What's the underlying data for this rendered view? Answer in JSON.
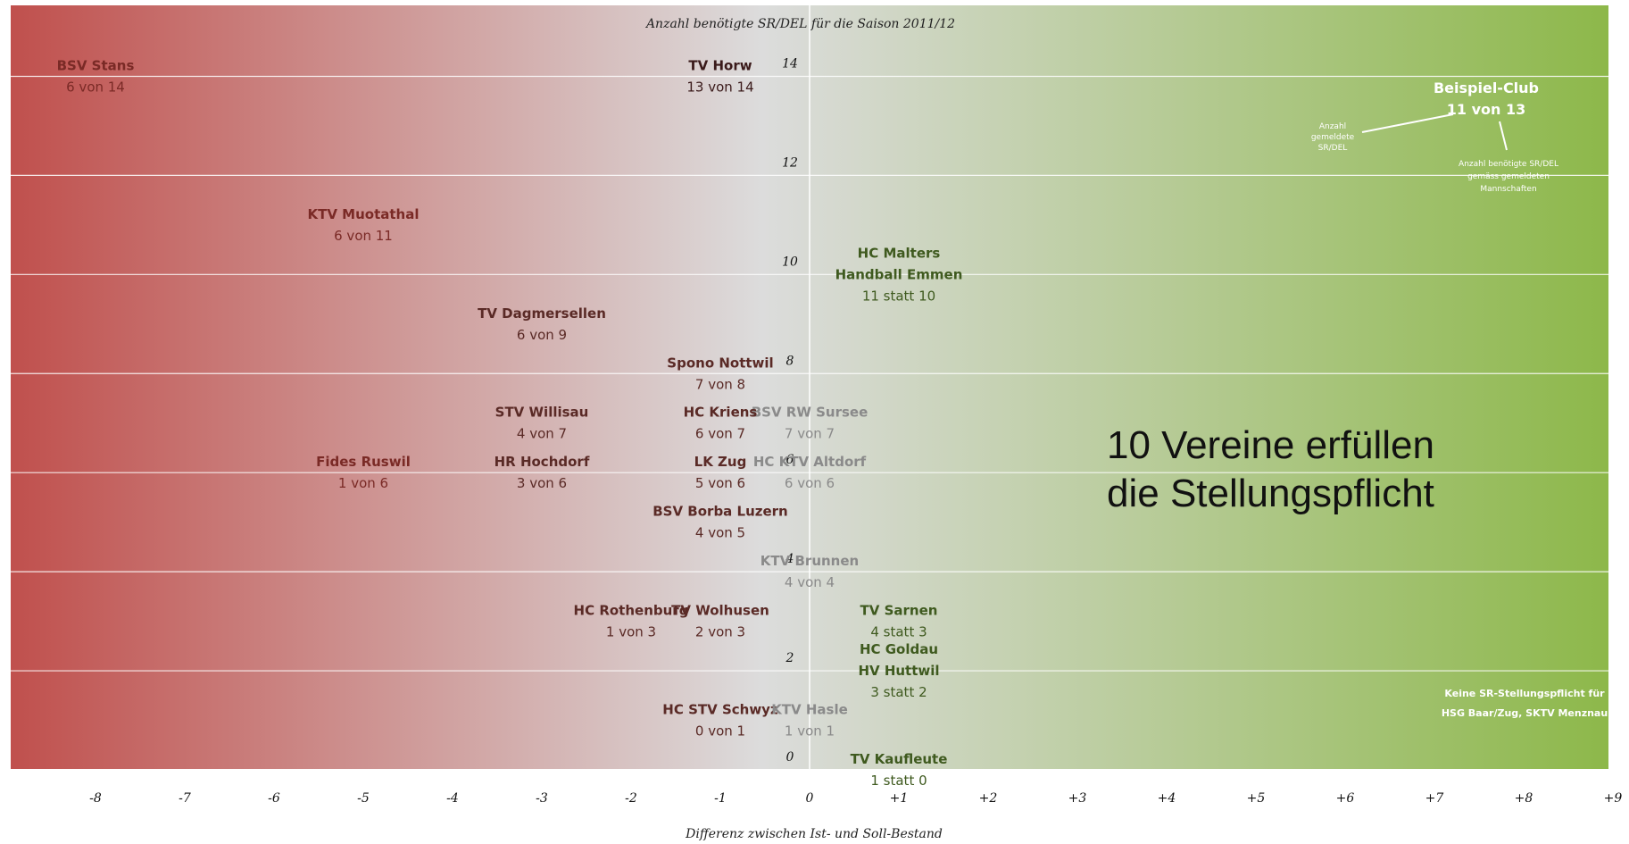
{
  "chart_data": {
    "type": "scatter",
    "title": "Anzahl benötigte SR/DEL für die Saison 2011/12",
    "xlabel": "Differenz zwischen Ist- und Soll-Bestand",
    "ylabel": "",
    "xlim": [
      -9,
      9
    ],
    "ylim": [
      0,
      15
    ],
    "x_ticks": [
      "-8",
      "-7",
      "-6",
      "-5",
      "-4",
      "-3",
      "-2",
      "-1",
      "0",
      "+1",
      "+2",
      "+3",
      "+4",
      "+5",
      "+6",
      "+7",
      "+8",
      "+9"
    ],
    "y_ticks": [
      "0",
      "2",
      "4",
      "6",
      "8",
      "10",
      "12",
      "14"
    ],
    "grid": "horizontal",
    "background": "gradient red to green",
    "colors": {
      "negative": "#c0504d",
      "neutral": "#dcdcdc",
      "positive": "#8db84a"
    },
    "points": [
      {
        "lines": [
          "BSV Stans",
          "6 von 14"
        ],
        "x": -8,
        "y": 14,
        "color": "#7a2a26"
      },
      {
        "lines": [
          "TV Horw",
          "13 von 14"
        ],
        "x": -1,
        "y": 14,
        "color": "#3a1a1a"
      },
      {
        "lines": [
          "KTV Muotathal",
          "6 von 11"
        ],
        "x": -5,
        "y": 11,
        "color": "#7a2a26"
      },
      {
        "lines": [
          "HC Malters",
          "Handball Emmen",
          "11 statt 10"
        ],
        "x": 1,
        "y": 10,
        "color": "#3f5a1f"
      },
      {
        "lines": [
          "TV Dagmersellen",
          "6 von 9"
        ],
        "x": -3,
        "y": 9,
        "color": "#5a2a26"
      },
      {
        "lines": [
          "Spono Nottwil",
          "7 von 8"
        ],
        "x": -1,
        "y": 8,
        "color": "#5a2a26"
      },
      {
        "lines": [
          "STV Willisau",
          "4 von 7"
        ],
        "x": -3,
        "y": 7,
        "color": "#5a2a26"
      },
      {
        "lines": [
          "BSV RW Sursee",
          "7 von 7"
        ],
        "x": 0,
        "y": 7,
        "color": "#8a8a8a"
      },
      {
        "lines": [
          "HC Kriens",
          "6 von 7"
        ],
        "x": -1,
        "y": 7,
        "color": "#5a2a26"
      },
      {
        "lines": [
          "HC KTV Altdorf",
          "6 von 6"
        ],
        "x": 0,
        "y": 6,
        "color": "#8a8a8a"
      },
      {
        "lines": [
          "Fides Ruswil",
          "1 von 6"
        ],
        "x": -5,
        "y": 6,
        "color": "#7a2a26"
      },
      {
        "lines": [
          "HR Hochdorf",
          "3 von 6"
        ],
        "x": -3,
        "y": 6,
        "color": "#5a2a26"
      },
      {
        "lines": [
          "LK Zug",
          "5 von 6"
        ],
        "x": -1,
        "y": 6,
        "color": "#5a2a26"
      },
      {
        "lines": [
          "BSV Borba Luzern",
          "4 von 5"
        ],
        "x": -1,
        "y": 5,
        "color": "#5a2a26"
      },
      {
        "lines": [
          "KTV Brunnen",
          "4 von 4"
        ],
        "x": 0,
        "y": 4,
        "color": "#8a8a8a"
      },
      {
        "lines": [
          "HC Rothenburg",
          "1 von 3"
        ],
        "x": -2,
        "y": 3,
        "color": "#5a2a26"
      },
      {
        "lines": [
          "TV Wolhusen",
          "2 von 3"
        ],
        "x": -1,
        "y": 3,
        "color": "#5a2a26"
      },
      {
        "lines": [
          "TV Sarnen",
          "4 statt 3"
        ],
        "x": 1,
        "y": 3,
        "color": "#3f5a1f"
      },
      {
        "lines": [
          "HC Goldau",
          "HV Huttwil",
          "3 statt 2"
        ],
        "x": 1,
        "y": 2,
        "color": "#3f5a1f"
      },
      {
        "lines": [
          "HC STV Schwyz",
          "0 von 1"
        ],
        "x": -1,
        "y": 1,
        "color": "#5a2a26"
      },
      {
        "lines": [
          "KTV Hasle",
          "1 von 1"
        ],
        "x": 0,
        "y": 1,
        "color": "#8a8a8a"
      },
      {
        "lines": [
          "TV Kaufleute",
          "1 statt 0"
        ],
        "x": 1,
        "y": 0,
        "color": "#3f5a1f"
      }
    ],
    "legend_example": {
      "title": "Beispiel-Club",
      "value": "11 von 13",
      "note_left": [
        "Anzahl",
        "gemeldete",
        "SR/DEL"
      ],
      "note_right": [
        "Anzahl benötigte SR/DEL",
        "gemäss gemeldeten",
        "Mannschaften"
      ]
    },
    "note_bottom_right": [
      "Keine SR-Stellungspflicht für",
      "HSG Baar/Zug, SKTV Menznau"
    ]
  },
  "callout": {
    "line1": "10 Vereine erfüllen",
    "line2": "die Stellungspflicht"
  }
}
